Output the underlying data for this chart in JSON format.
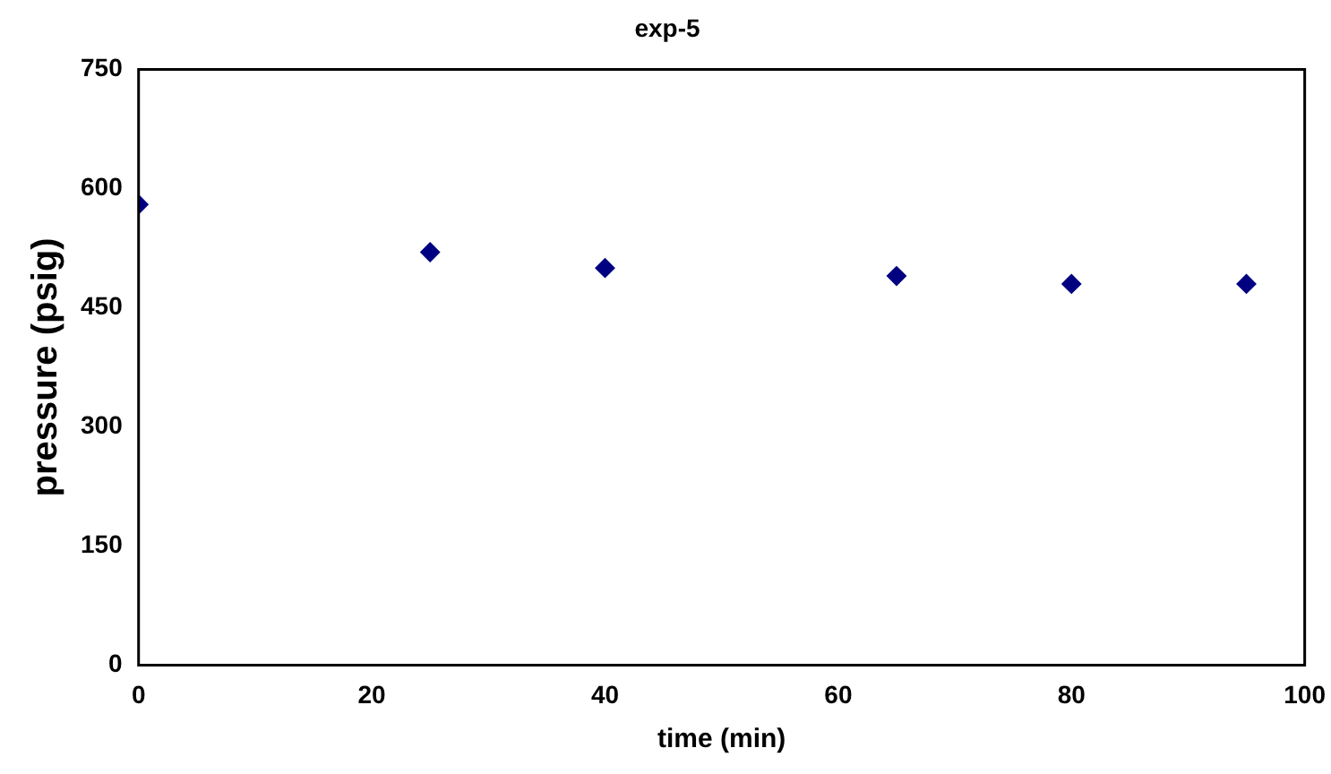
{
  "chart_data": {
    "type": "scatter",
    "title": "exp-5",
    "xlabel": "time (min)",
    "ylabel": "pressure (psig)",
    "x": [
      0,
      25,
      40,
      65,
      80,
      95
    ],
    "series": [
      {
        "color": "#000080",
        "values": [
          580,
          520,
          500,
          490,
          480,
          480
        ]
      }
    ],
    "xlim": [
      0,
      100
    ],
    "xticks": [
      0,
      20,
      40,
      60,
      80,
      100
    ],
    "ylim": [
      0,
      750
    ],
    "yticks": [
      0,
      150,
      300,
      450,
      600,
      750
    ],
    "grid": false,
    "legend": false,
    "marker": "diamond"
  }
}
